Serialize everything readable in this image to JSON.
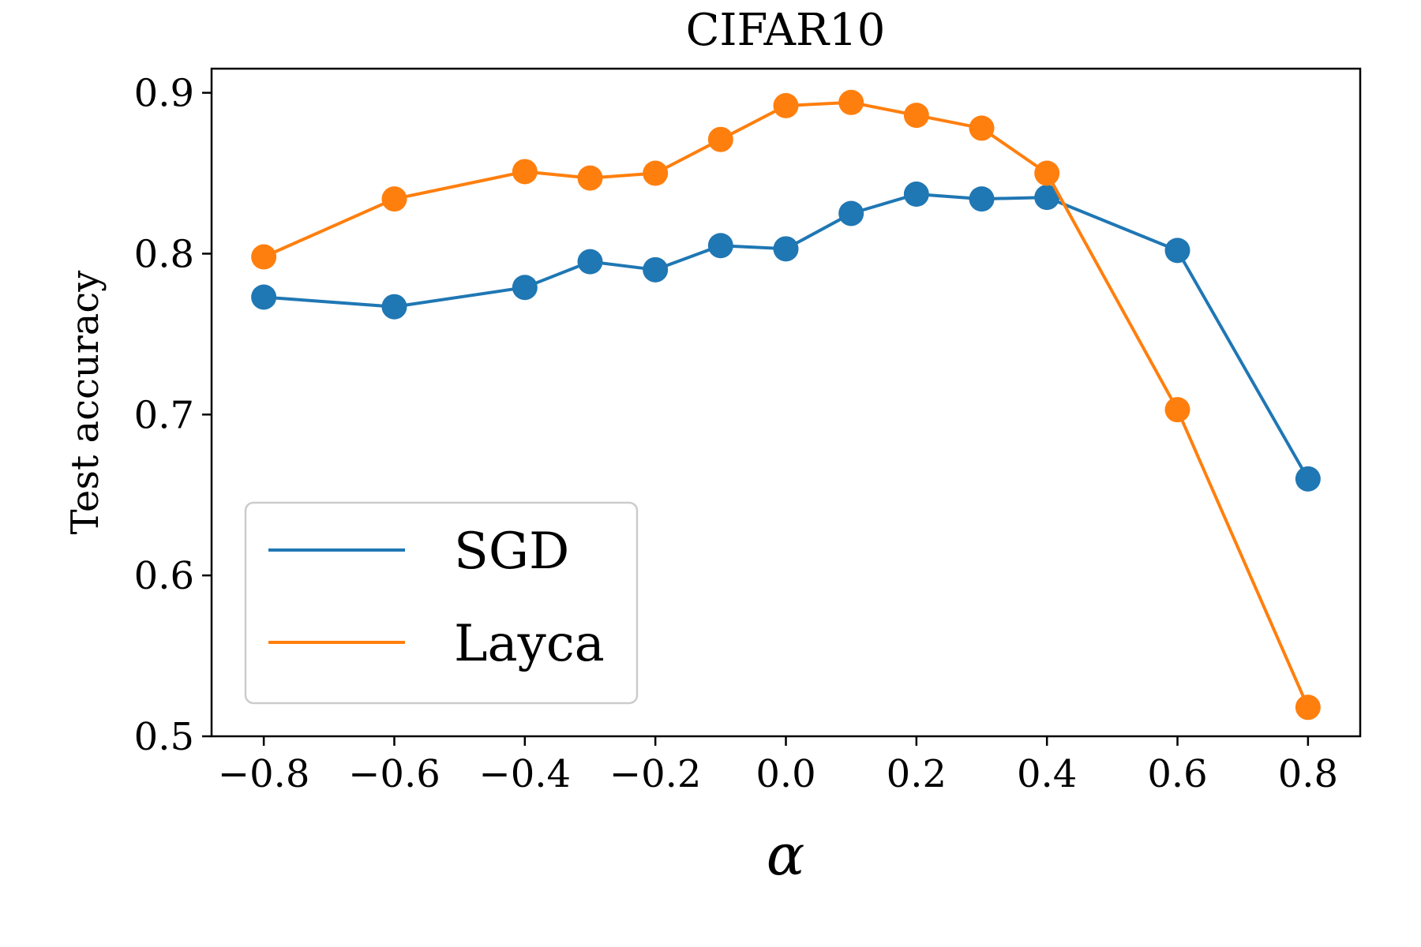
{
  "chart_data": {
    "type": "line",
    "title": "CIFAR10",
    "xlabel": "α",
    "ylabel": "Test accuracy",
    "xlim": [
      -0.88,
      0.88
    ],
    "ylim": [
      0.5,
      0.915
    ],
    "xticks": [
      -0.8,
      -0.6,
      -0.4,
      -0.2,
      0.0,
      0.2,
      0.4,
      0.6,
      0.8
    ],
    "xtick_labels": [
      "−0.8",
      "−0.6",
      "−0.4",
      "−0.2",
      "0.0",
      "0.2",
      "0.4",
      "0.6",
      "0.8"
    ],
    "yticks": [
      0.5,
      0.6,
      0.7,
      0.8,
      0.9
    ],
    "ytick_labels": [
      "0.5",
      "0.6",
      "0.7",
      "0.8",
      "0.9"
    ],
    "grid": false,
    "legend_position": "lower-left",
    "series": [
      {
        "name": "SGD",
        "color": "#1f77b4",
        "x": [
          -0.8,
          -0.6,
          -0.4,
          -0.3,
          -0.2,
          -0.1,
          0.0,
          0.1,
          0.2,
          0.3,
          0.4,
          0.6,
          0.8
        ],
        "y": [
          0.773,
          0.767,
          0.779,
          0.795,
          0.79,
          0.805,
          0.803,
          0.825,
          0.837,
          0.834,
          0.835,
          0.802,
          0.66
        ]
      },
      {
        "name": "Layca",
        "color": "#ff7f0e",
        "x": [
          -0.8,
          -0.6,
          -0.4,
          -0.3,
          -0.2,
          -0.1,
          0.0,
          0.1,
          0.2,
          0.3,
          0.4,
          0.6,
          0.8
        ],
        "y": [
          0.798,
          0.834,
          0.851,
          0.847,
          0.85,
          0.871,
          0.892,
          0.894,
          0.886,
          0.878,
          0.85,
          0.703,
          0.518
        ]
      }
    ]
  }
}
